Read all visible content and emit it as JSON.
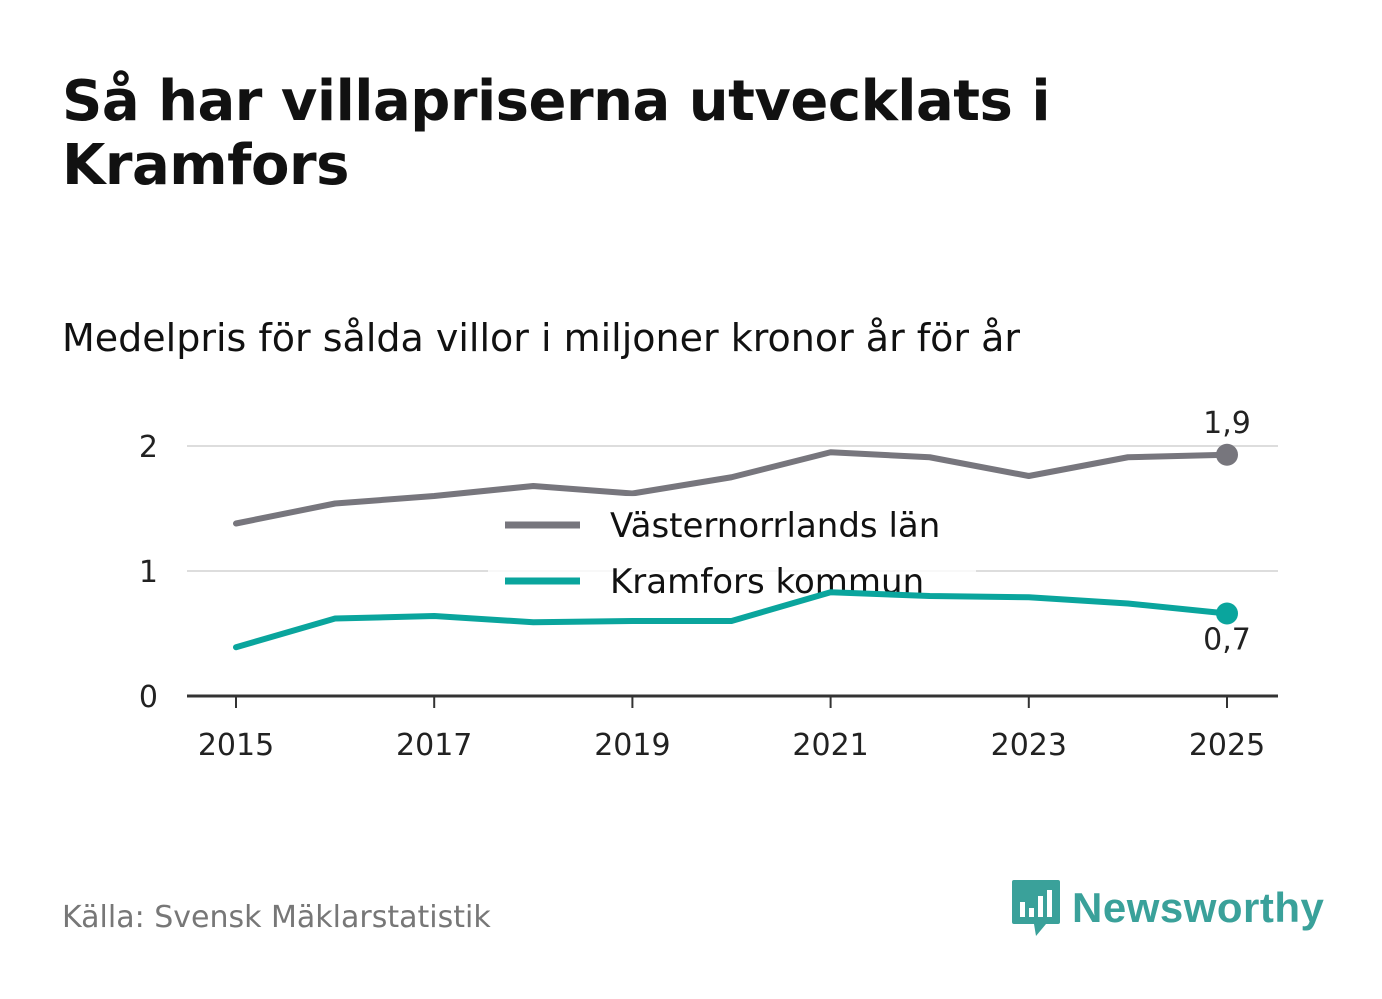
{
  "title": "Så har villapriserna utvecklats i Kramfors",
  "subtitle": "Medelpris för sålda villor i miljoner kronor år för år",
  "source": "Källa: Svensk Mäklarstatistik",
  "brand": "Newsworthy",
  "colors": {
    "series1": "#77767d",
    "series2": "#0aa59d",
    "grid": "#dddddd",
    "axis": "#333333",
    "brand": "#3aa19a"
  },
  "icons": {
    "logo": "newsworthy-bar-chart-icon"
  },
  "chart_data": {
    "type": "line",
    "title": "Så har villapriserna utvecklats i Kramfors",
    "subtitle": "Medelpris för sålda villor i miljoner kronor år för år",
    "x": [
      2015,
      2016,
      2017,
      2018,
      2019,
      2020,
      2021,
      2022,
      2023,
      2024,
      2025
    ],
    "xticks": [
      "2015",
      "2017",
      "2019",
      "2021",
      "2023",
      "2025"
    ],
    "yticks": [
      "0",
      "1",
      "2"
    ],
    "ylim": [
      0,
      2.3
    ],
    "grid": true,
    "legend_position": "center",
    "series": [
      {
        "name": "Västernorrlands län",
        "values": [
          1.38,
          1.54,
          1.6,
          1.68,
          1.62,
          1.75,
          1.95,
          1.91,
          1.76,
          1.91,
          1.93
        ],
        "end_label": "1,9"
      },
      {
        "name": "Kramfors kommun",
        "values": [
          0.39,
          0.62,
          0.64,
          0.59,
          0.6,
          0.6,
          0.83,
          0.8,
          0.79,
          0.74,
          0.66
        ],
        "end_label": "0,7"
      }
    ]
  }
}
